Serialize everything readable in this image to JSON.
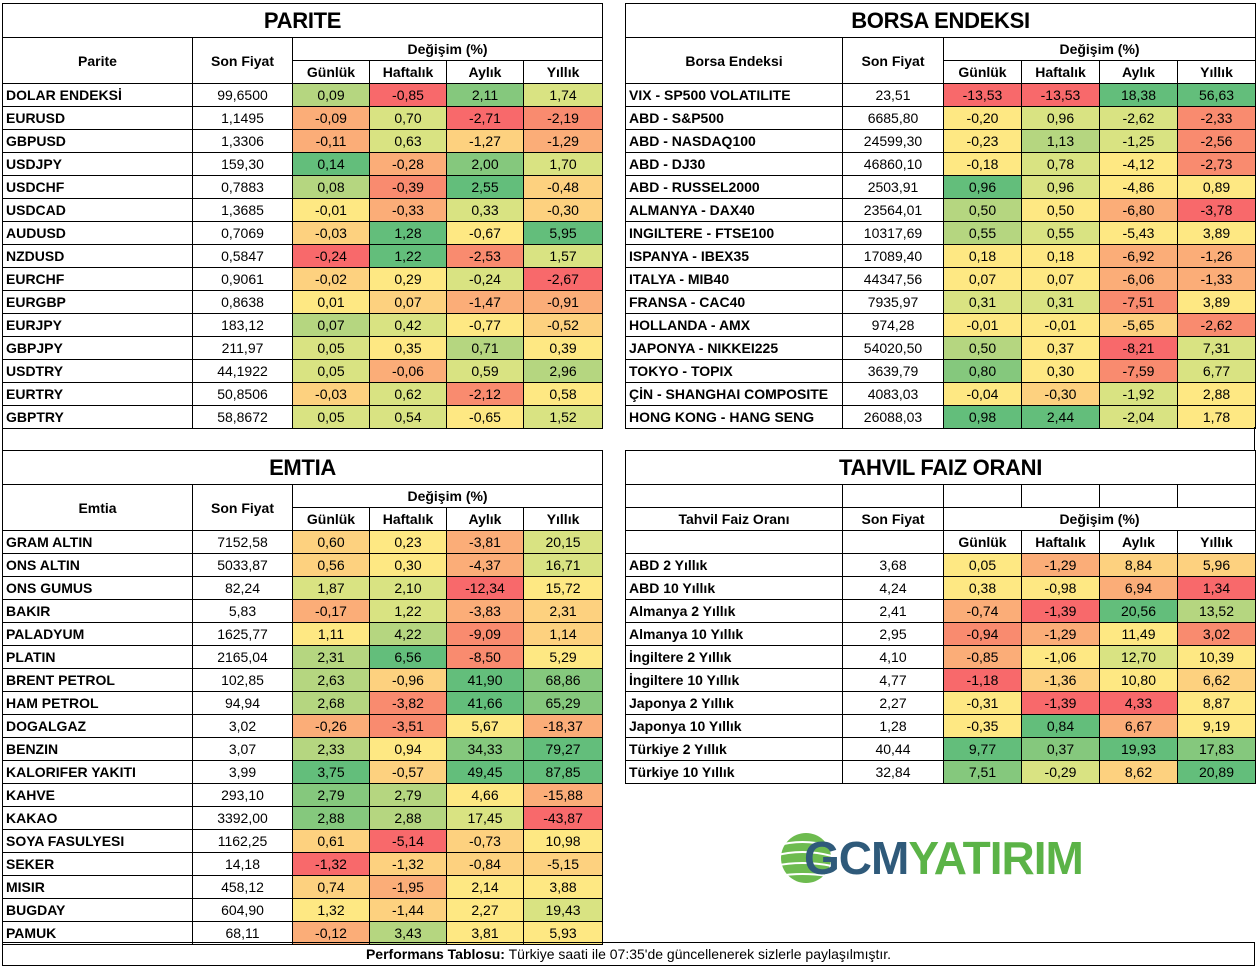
{
  "parite": {
    "title": "PARITE",
    "col_name": "Parite",
    "col_price": "Son Fiyat",
    "col_change": "Değişim (%)",
    "periods": [
      "Günlük",
      "Haftalık",
      "Aylık",
      "Yıllık"
    ],
    "rows": [
      {
        "name": "DOLAR ENDEKSİ",
        "price": "99,6500",
        "vals": [
          "0,09",
          "-0,85",
          "2,11",
          "1,74"
        ],
        "tones": [
          "g1",
          "r2",
          "g2",
          "lg"
        ]
      },
      {
        "name": "EURUSD",
        "price": "1,1495",
        "vals": [
          "-0,09",
          "0,70",
          "-2,71",
          "-2,19"
        ],
        "tones": [
          "o2",
          "lg",
          "r2",
          "r1"
        ]
      },
      {
        "name": "GBPUSD",
        "price": "1,3306",
        "vals": [
          "-0,11",
          "0,63",
          "-1,27",
          "-1,29"
        ],
        "tones": [
          "o2",
          "lg",
          "o1",
          "o2"
        ]
      },
      {
        "name": "USDJPY",
        "price": "159,30",
        "vals": [
          "0,14",
          "-0,28",
          "2,00",
          "1,70"
        ],
        "tones": [
          "g3",
          "o2",
          "g2",
          "lg"
        ]
      },
      {
        "name": "USDCHF",
        "price": "0,7883",
        "vals": [
          "0,08",
          "-0,39",
          "2,55",
          "-0,48"
        ],
        "tones": [
          "g1",
          "r1",
          "g3",
          "o1"
        ]
      },
      {
        "name": "USDCAD",
        "price": "1,3685",
        "vals": [
          "-0,01",
          "-0,33",
          "0,33",
          "-0,30"
        ],
        "tones": [
          "y",
          "o2",
          "lg",
          "o1"
        ]
      },
      {
        "name": "AUDUSD",
        "price": "0,7069",
        "vals": [
          "-0,03",
          "1,28",
          "-0,67",
          "5,95"
        ],
        "tones": [
          "o1",
          "g3",
          "y",
          "g3"
        ]
      },
      {
        "name": "NZDUSD",
        "price": "0,5847",
        "vals": [
          "-0,24",
          "1,22",
          "-2,53",
          "1,57"
        ],
        "tones": [
          "r2",
          "g3",
          "r1",
          "lg"
        ]
      },
      {
        "name": "EURCHF",
        "price": "0,9061",
        "vals": [
          "-0,02",
          "0,29",
          "-0,24",
          "-2,67"
        ],
        "tones": [
          "o1",
          "y",
          "lg",
          "r2"
        ]
      },
      {
        "name": "EURGBP",
        "price": "0,8638",
        "vals": [
          "0,01",
          "0,07",
          "-1,47",
          "-0,91"
        ],
        "tones": [
          "y",
          "o1",
          "o2",
          "o2"
        ]
      },
      {
        "name": "EURJPY",
        "price": "183,12",
        "vals": [
          "0,07",
          "0,42",
          "-0,77",
          "-0,52"
        ],
        "tones": [
          "g1",
          "lg",
          "y",
          "o1"
        ]
      },
      {
        "name": "GBPJPY",
        "price": "211,97",
        "vals": [
          "0,05",
          "0,35",
          "0,71",
          "0,39"
        ],
        "tones": [
          "lg",
          "y",
          "g1",
          "y"
        ]
      },
      {
        "name": "USDTRY",
        "price": "44,1922",
        "vals": [
          "0,05",
          "-0,06",
          "0,59",
          "2,96"
        ],
        "tones": [
          "lg",
          "o2",
          "lg",
          "g1"
        ]
      },
      {
        "name": "EURTRY",
        "price": "50,8506",
        "vals": [
          "-0,03",
          "0,62",
          "-2,12",
          "0,58"
        ],
        "tones": [
          "o1",
          "lg",
          "r1",
          "y"
        ]
      },
      {
        "name": "GBPTRY",
        "price": "58,8672",
        "vals": [
          "0,05",
          "0,54",
          "-0,65",
          "1,52"
        ],
        "tones": [
          "lg",
          "lg",
          "y",
          "lg"
        ]
      }
    ]
  },
  "borsa": {
    "title": "BORSA ENDEKSI",
    "col_name": "Borsa Endeksi",
    "col_price": "Son Fiyat",
    "col_change": "Değişim (%)",
    "periods": [
      "Günlük",
      "Haftalık",
      "Aylık",
      "Yıllık"
    ],
    "rows": [
      {
        "name": "VIX  - SP500 VOLATILITE",
        "price": "23,51",
        "vals": [
          "-13,53",
          "-13,53",
          "18,38",
          "56,63"
        ],
        "tones": [
          "r2",
          "r2",
          "g3",
          "g3"
        ]
      },
      {
        "name": "ABD - S&P500",
        "price": "6685,80",
        "vals": [
          "-0,20",
          "0,96",
          "-2,62",
          "-2,33"
        ],
        "tones": [
          "y",
          "lg",
          "lg",
          "r1"
        ]
      },
      {
        "name": "ABD - NASDAQ100",
        "price": "24599,30",
        "vals": [
          "-0,23",
          "1,13",
          "-1,25",
          "-2,56"
        ],
        "tones": [
          "y",
          "g1",
          "lg",
          "r1"
        ]
      },
      {
        "name": "ABD - DJ30",
        "price": "46860,10",
        "vals": [
          "-0,18",
          "0,78",
          "-4,12",
          "-2,73"
        ],
        "tones": [
          "y",
          "lg",
          "y",
          "r1"
        ]
      },
      {
        "name": "ABD - RUSSEL2000",
        "price": "2503,91",
        "vals": [
          "0,96",
          "0,96",
          "-4,86",
          "0,89"
        ],
        "tones": [
          "g3",
          "lg",
          "y",
          "y"
        ]
      },
      {
        "name": "ALMANYA - DAX40",
        "price": "23564,01",
        "vals": [
          "0,50",
          "0,50",
          "-6,80",
          "-3,78"
        ],
        "tones": [
          "g1",
          "y",
          "o2",
          "r2"
        ]
      },
      {
        "name": "INGILTERE - FTSE100",
        "price": "10317,69",
        "vals": [
          "0,55",
          "0,55",
          "-5,43",
          "3,89"
        ],
        "tones": [
          "g1",
          "lg",
          "y",
          "y"
        ]
      },
      {
        "name": "ISPANYA - IBEX35",
        "price": "17089,40",
        "vals": [
          "0,18",
          "0,18",
          "-6,92",
          "-1,26"
        ],
        "tones": [
          "y",
          "y",
          "o2",
          "o2"
        ]
      },
      {
        "name": "ITALYA - MIB40",
        "price": "44347,56",
        "vals": [
          "0,07",
          "0,07",
          "-6,06",
          "-1,33"
        ],
        "tones": [
          "y",
          "y",
          "o2",
          "o2"
        ]
      },
      {
        "name": "FRANSA - CAC40",
        "price": "7935,97",
        "vals": [
          "0,31",
          "0,31",
          "-7,51",
          "3,89"
        ],
        "tones": [
          "lg",
          "lg",
          "r1",
          "y"
        ]
      },
      {
        "name": "HOLLANDA - AMX",
        "price": "974,28",
        "vals": [
          "-0,01",
          "-0,01",
          "-5,65",
          "-2,62"
        ],
        "tones": [
          "y",
          "y",
          "o1",
          "r1"
        ]
      },
      {
        "name": "JAPONYA - NIKKEI225",
        "price": "54020,50",
        "vals": [
          "0,50",
          "0,37",
          "-8,21",
          "7,31"
        ],
        "tones": [
          "g1",
          "y",
          "r2",
          "lg"
        ]
      },
      {
        "name": "TOKYO - TOPIX",
        "price": "3639,79",
        "vals": [
          "0,80",
          "0,30",
          "-7,59",
          "6,77"
        ],
        "tones": [
          "g2",
          "y",
          "r1",
          "lg"
        ]
      },
      {
        "name": "ÇİN - SHANGHAI COMPOSITE",
        "price": "4083,03",
        "vals": [
          "-0,04",
          "-0,30",
          "-1,92",
          "2,88"
        ],
        "tones": [
          "y",
          "o1",
          "lg",
          "y"
        ]
      },
      {
        "name": "HONG KONG - HANG SENG",
        "price": "26088,03",
        "vals": [
          "0,98",
          "2,44",
          "-2,04",
          "1,78"
        ],
        "tones": [
          "g3",
          "g3",
          "lg",
          "y"
        ]
      }
    ]
  },
  "emtia": {
    "title": "EMTIA",
    "col_name": "Emtia",
    "col_price": "Son Fiyat",
    "col_change": "Değişim (%)",
    "periods": [
      "Günlük",
      "Haftalık",
      "Aylık",
      "Yıllık"
    ],
    "rows": [
      {
        "name": "GRAM ALTIN",
        "price": "7152,58",
        "vals": [
          "0,60",
          "0,23",
          "-3,81",
          "20,15"
        ],
        "tones": [
          "o1",
          "y",
          "o2",
          "lg"
        ]
      },
      {
        "name": "ONS ALTIN",
        "price": "5033,87",
        "vals": [
          "0,56",
          "0,30",
          "-4,37",
          "16,71"
        ],
        "tones": [
          "o1",
          "y",
          "o2",
          "lg"
        ]
      },
      {
        "name": "ONS GUMUS",
        "price": "82,24",
        "vals": [
          "1,87",
          "2,10",
          "-12,34",
          "15,72"
        ],
        "tones": [
          "lg",
          "lg",
          "r2",
          "y"
        ]
      },
      {
        "name": "BAKIR",
        "price": "5,83",
        "vals": [
          "-0,17",
          "1,22",
          "-3,83",
          "2,31"
        ],
        "tones": [
          "o2",
          "lg",
          "o2",
          "o1"
        ]
      },
      {
        "name": "PALADYUM",
        "price": "1625,77",
        "vals": [
          "1,11",
          "4,22",
          "-9,09",
          "1,14"
        ],
        "tones": [
          "y",
          "g1",
          "r1",
          "o1"
        ]
      },
      {
        "name": "PLATIN",
        "price": "2165,04",
        "vals": [
          "2,31",
          "6,56",
          "-8,50",
          "5,29"
        ],
        "tones": [
          "g1",
          "g3",
          "r1",
          "y"
        ]
      },
      {
        "name": "BRENT PETROL",
        "price": "102,85",
        "vals": [
          "2,63",
          "-0,96",
          "41,90",
          "68,86"
        ],
        "tones": [
          "g1",
          "o1",
          "g3",
          "g2"
        ]
      },
      {
        "name": "HAM PETROL",
        "price": "94,94",
        "vals": [
          "2,68",
          "-3,82",
          "41,66",
          "65,29"
        ],
        "tones": [
          "g1",
          "r1",
          "g3",
          "g2"
        ]
      },
      {
        "name": "DOGALGAZ",
        "price": "3,02",
        "vals": [
          "-0,26",
          "-3,51",
          "5,67",
          "-18,37"
        ],
        "tones": [
          "o2",
          "r1",
          "y",
          "o2"
        ]
      },
      {
        "name": "BENZIN",
        "price": "3,07",
        "vals": [
          "2,33",
          "0,94",
          "34,33",
          "79,27"
        ],
        "tones": [
          "g1",
          "y",
          "g2",
          "g3"
        ]
      },
      {
        "name": "KALORIFER YAKITI",
        "price": "3,99",
        "vals": [
          "3,75",
          "-0,57",
          "49,45",
          "87,85"
        ],
        "tones": [
          "g3",
          "o1",
          "g3",
          "g3"
        ]
      },
      {
        "name": "KAHVE",
        "price": "293,10",
        "vals": [
          "2,79",
          "2,79",
          "4,66",
          "-15,88"
        ],
        "tones": [
          "g2",
          "g1",
          "y",
          "o2"
        ]
      },
      {
        "name": "KAKAO",
        "price": "3392,00",
        "vals": [
          "2,88",
          "2,88",
          "17,45",
          "-43,87"
        ],
        "tones": [
          "g2",
          "g1",
          "lg",
          "r2"
        ]
      },
      {
        "name": "SOYA FASULYESI",
        "price": "1162,25",
        "vals": [
          "0,61",
          "-5,14",
          "-0,73",
          "10,98"
        ],
        "tones": [
          "o1",
          "r2",
          "o1",
          "y"
        ]
      },
      {
        "name": "SEKER",
        "price": "14,18",
        "vals": [
          "-1,32",
          "-1,32",
          "-0,84",
          "-5,15"
        ],
        "tones": [
          "r2",
          "o1",
          "o1",
          "o1"
        ]
      },
      {
        "name": "MISIR",
        "price": "458,12",
        "vals": [
          "0,74",
          "-1,95",
          "2,14",
          "3,88"
        ],
        "tones": [
          "o1",
          "o2",
          "y",
          "y"
        ]
      },
      {
        "name": "BUGDAY",
        "price": "604,90",
        "vals": [
          "1,32",
          "-1,44",
          "2,27",
          "19,43"
        ],
        "tones": [
          "y",
          "o1",
          "y",
          "lg"
        ]
      },
      {
        "name": "PAMUK",
        "price": "68,11",
        "vals": [
          "-0,12",
          "3,43",
          "3,81",
          "5,93"
        ],
        "tones": [
          "o2",
          "g1",
          "y",
          "y"
        ]
      }
    ]
  },
  "tahvil": {
    "title": "TAHVIL FAIZ ORANI",
    "col_name": "Tahvil Faiz Oranı",
    "col_price": "Son Fiyat",
    "col_change": "Değişim (%)",
    "periods": [
      "Günlük",
      "Haftalık",
      "Aylık",
      "Yıllık"
    ],
    "rows": [
      {
        "name": "ABD 2 Yıllık",
        "price": "3,68",
        "vals": [
          "0,05",
          "-1,29",
          "8,84",
          "5,96"
        ],
        "tones": [
          "y",
          "o2",
          "o1",
          "o1"
        ]
      },
      {
        "name": "ABD 10 Yıllık",
        "price": "4,24",
        "vals": [
          "0,38",
          "-0,98",
          "6,94",
          "1,34"
        ],
        "tones": [
          "y",
          "y",
          "o2",
          "r2"
        ]
      },
      {
        "name": "Almanya 2 Yıllık",
        "price": "2,41",
        "vals": [
          "-0,74",
          "-1,39",
          "20,56",
          "13,52"
        ],
        "tones": [
          "o2",
          "r2",
          "g3",
          "g1"
        ]
      },
      {
        "name": "Almanya 10 Yıllık",
        "price": "2,95",
        "vals": [
          "-0,94",
          "-1,29",
          "11,49",
          "3,02"
        ],
        "tones": [
          "r1",
          "o2",
          "y",
          "r1"
        ]
      },
      {
        "name": "İngiltere 2 Yıllık",
        "price": "4,10",
        "vals": [
          "-0,85",
          "-1,06",
          "12,70",
          "10,39"
        ],
        "tones": [
          "o2",
          "y",
          "lg",
          "y"
        ]
      },
      {
        "name": "İngiltere 10 Yıllık",
        "price": "4,77",
        "vals": [
          "-1,18",
          "-1,36",
          "10,80",
          "6,62"
        ],
        "tones": [
          "r2",
          "o1",
          "y",
          "o1"
        ]
      },
      {
        "name": "Japonya 2 Yıllık",
        "price": "2,27",
        "vals": [
          "-0,31",
          "-1,39",
          "4,33",
          "8,87"
        ],
        "tones": [
          "y",
          "r2",
          "r2",
          "y"
        ]
      },
      {
        "name": "Japonya 10 Yıllık",
        "price": "1,28",
        "vals": [
          "-0,35",
          "0,84",
          "6,67",
          "9,19"
        ],
        "tones": [
          "y",
          "g3",
          "o2",
          "y"
        ]
      },
      {
        "name": "Türkiye 2 Yıllık",
        "price": "40,44",
        "vals": [
          "9,77",
          "0,37",
          "19,93",
          "17,83"
        ],
        "tones": [
          "g3",
          "g2",
          "g3",
          "g2"
        ]
      },
      {
        "name": "Türkiye 10 Yıllık",
        "price": "32,84",
        "vals": [
          "7,51",
          "-0,29",
          "8,62",
          "20,89"
        ],
        "tones": [
          "g2",
          "lg",
          "o1",
          "g3"
        ]
      }
    ]
  },
  "logo": {
    "part1": "GCM",
    "part2": "YATIRIM",
    "color1": "#2f5a7a",
    "color2": "#5bb347"
  },
  "footer": {
    "label": "Performans Tablosu:",
    "text": " Türkiye saati ile 07:35'de güncellenerek sizlerle paylaşılmıştır."
  },
  "colors": {
    "green_strong": "#63be7b",
    "yellow": "#fee883",
    "red_strong": "#f8696b"
  }
}
